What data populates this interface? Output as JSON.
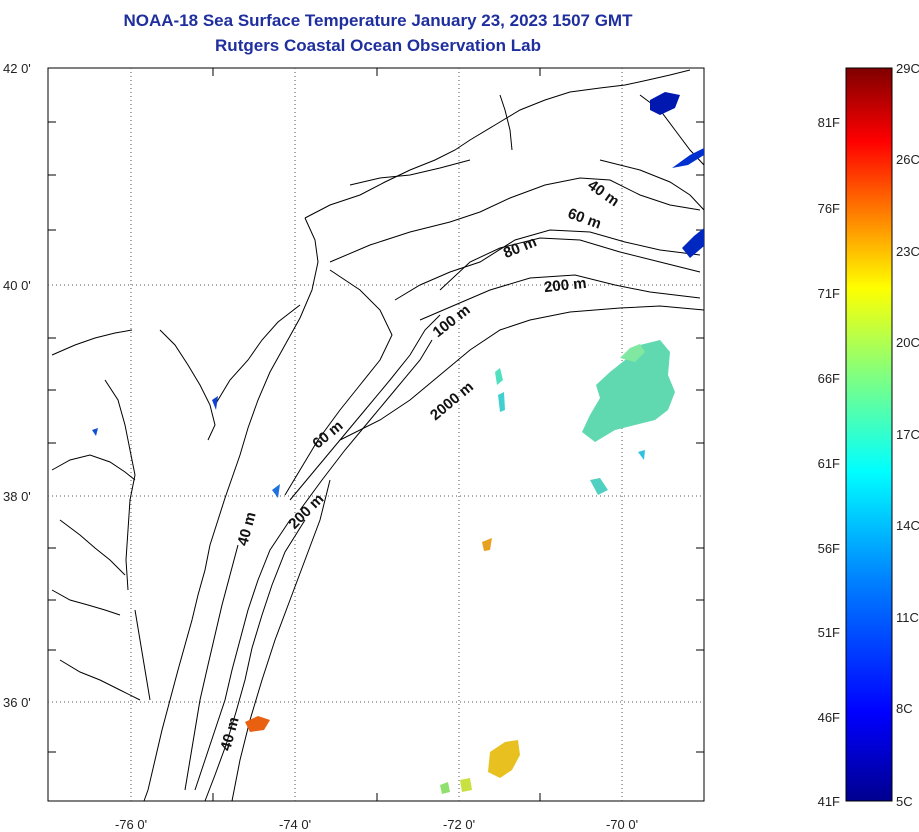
{
  "header": {
    "title_line1": "NOAA-18 Sea Surface Temperature January 23, 2023 1507 GMT",
    "title_line2": "Rutgers Coastal Ocean Observation Lab"
  },
  "map": {
    "lat_labels": [
      "42 0'",
      "40 0'",
      "38 0'",
      "36 0'"
    ],
    "lon_labels": [
      "-76 0'",
      "-74 0'",
      "-72 0'",
      "-70 0'"
    ],
    "gridlines": "dotted",
    "land_color": "#ffffff",
    "coast_color": "#000000",
    "contour_labels": [
      "40 m",
      "60 m",
      "80 m",
      "200 m",
      "100 m",
      "2000 m",
      "60 m",
      "200 m",
      "40 m",
      "40 m"
    ]
  },
  "colorbar": {
    "celsius_labels": [
      "29C",
      "26C",
      "23C",
      "20C",
      "17C",
      "14C",
      "11C",
      "8C",
      "5C"
    ],
    "fahrenheit_labels": [
      "81F",
      "76F",
      "71F",
      "66F",
      "61F",
      "56F",
      "51F",
      "46F",
      "41F"
    ],
    "colors": [
      "#7f0000",
      "#ff0000",
      "#ff8000",
      "#ffff00",
      "#80ff80",
      "#00ffff",
      "#0080ff",
      "#0000ff",
      "#00008f"
    ]
  }
}
